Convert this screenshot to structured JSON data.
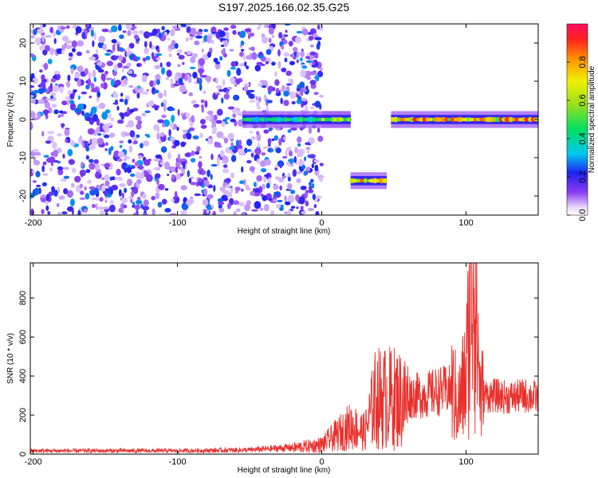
{
  "title": "S197.2025.166.02.35.G25",
  "chart_data": [
    {
      "type": "heatmap",
      "xlabel": "Height of straight line (km)",
      "ylabel": "Frequency (Hz)",
      "xlim": [
        -202,
        150
      ],
      "ylim": [
        -25,
        25
      ],
      "x_ticks": [
        -200,
        -100,
        0,
        100
      ],
      "y_ticks": [
        -20,
        -10,
        0,
        10,
        20
      ],
      "colorbar": {
        "label": "Normalized spectral amplitude",
        "range": [
          0,
          1
        ],
        "ticks": [
          0.0,
          0.2,
          0.4,
          0.6,
          0.8
        ]
      },
      "features": [
        {
          "name": "noise region",
          "x_range": [
            -202,
            0
          ],
          "freq_range": [
            -25,
            25
          ],
          "amplitude": [
            0.05,
            0.3
          ]
        },
        {
          "name": "signal track",
          "x_range": [
            -55,
            20
          ],
          "freq_hz": 0,
          "amplitude": [
            0.3,
            0.5
          ]
        },
        {
          "name": "signal track",
          "x_range": [
            0,
            20
          ],
          "freq_hz": 0,
          "amplitude": [
            0.4,
            0.7
          ]
        },
        {
          "name": "offset signal",
          "x_range": [
            20,
            45
          ],
          "freq_hz": -16,
          "amplitude": [
            0.5,
            0.9
          ]
        },
        {
          "name": "signal track",
          "x_range": [
            48,
            150
          ],
          "freq_hz": 0,
          "amplitude": [
            0.5,
            0.95
          ]
        }
      ]
    },
    {
      "type": "line",
      "xlabel": "Height of straight line (km)",
      "ylabel": "SNR (10 * v/v)",
      "xlim": [
        -202,
        150
      ],
      "ylim": [
        0,
        980
      ],
      "x_ticks": [
        -200,
        -100,
        0,
        100
      ],
      "y_ticks": [
        0,
        200,
        400,
        600,
        800
      ],
      "series": [
        {
          "color": "#e8302c",
          "x": [
            -200,
            -150,
            -100,
            -50,
            -20,
            0,
            10,
            20,
            30,
            35,
            40,
            50,
            60,
            70,
            80,
            90,
            95,
            100,
            105,
            110,
            120,
            130,
            140,
            150
          ],
          "y": [
            20,
            20,
            20,
            25,
            40,
            60,
            120,
            180,
            140,
            300,
            320,
            320,
            300,
            300,
            320,
            330,
            250,
            400,
            980,
            300,
            300,
            290,
            300,
            290
          ]
        }
      ]
    }
  ],
  "colors": {
    "line": "#e8302c",
    "axis": "#000000"
  }
}
